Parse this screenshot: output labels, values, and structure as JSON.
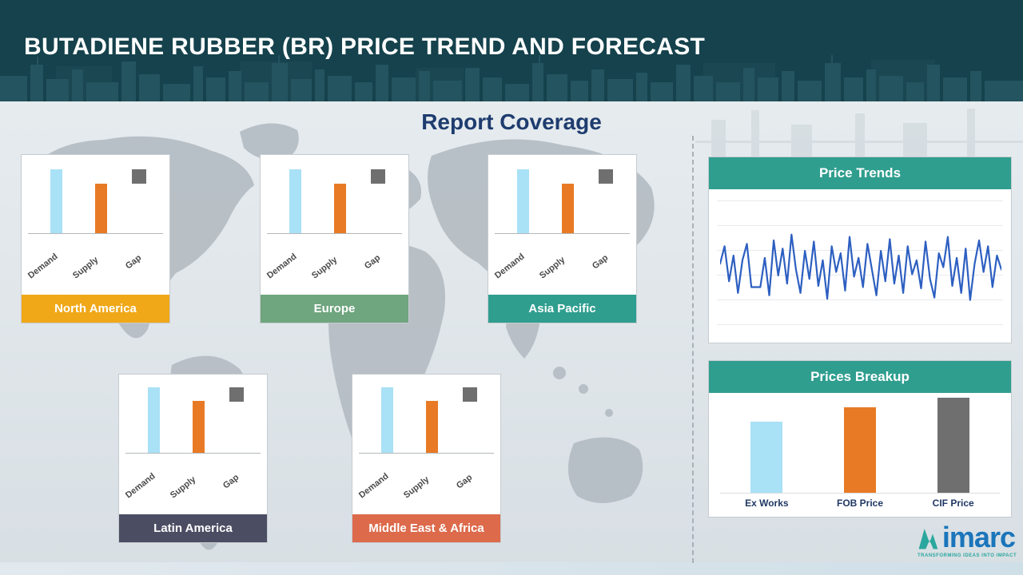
{
  "accent_color": "#2f9e8f",
  "header": {
    "title": "BUTADIENE RUBBER (BR) PRICE TREND AND FORECAST",
    "bg_color": "#15424c"
  },
  "main": {
    "title": "Report Coverage"
  },
  "mini_chart_labels": [
    "Demand",
    "Supply",
    "Gap"
  ],
  "mini_chart_colors": {
    "demand": "#a9e1f6",
    "supply": "#e87a25",
    "gap": "#6f6f6f"
  },
  "regions": [
    {
      "name": "North America",
      "label_color": "#f0a818",
      "demand": 80,
      "supply": 62,
      "gap": 18
    },
    {
      "name": "Europe",
      "label_color": "#6fa57f",
      "demand": 80,
      "supply": 62,
      "gap": 18
    },
    {
      "name": "Asia Pacific",
      "label_color": "#2f9e8f",
      "demand": 80,
      "supply": 62,
      "gap": 18
    },
    {
      "name": "Latin America",
      "label_color": "#4b4e63",
      "demand": 82,
      "supply": 65,
      "gap": 18
    },
    {
      "name": "Middle East & Africa",
      "label_color": "#dc6a4b",
      "demand": 82,
      "supply": 65,
      "gap": 18
    }
  ],
  "price_trends": {
    "title": "Price Trends",
    "line_color": "#2d5fc1",
    "values": [
      55,
      70,
      40,
      62,
      30,
      58,
      72,
      35,
      35,
      35,
      60,
      28,
      75,
      45,
      68,
      38,
      80,
      50,
      30,
      66,
      42,
      74,
      36,
      58,
      25,
      70,
      48,
      64,
      32,
      78,
      44,
      60,
      35,
      72,
      50,
      28,
      66,
      40,
      76,
      38,
      62,
      30,
      70,
      46,
      58,
      34,
      74,
      42,
      26,
      64,
      52,
      78,
      36,
      60,
      30,
      68,
      24,
      55,
      75,
      48,
      70,
      35,
      62,
      50
    ]
  },
  "prices_breakup": {
    "title": "Prices Breakup",
    "bars": [
      {
        "label": "Ex Works",
        "color": "#a9e1f6",
        "value": 63
      },
      {
        "label": "FOB Price",
        "color": "#e87a25",
        "value": 75
      },
      {
        "label": "CIF Price",
        "color": "#6f6f6f",
        "value": 84
      }
    ]
  },
  "logo": {
    "name": "imarc",
    "tagline": "TRANSFORMING IDEAS INTO IMPACT",
    "text_color": "#1b75bb",
    "mark_color": "#2aa79e"
  },
  "chart_data": [
    {
      "type": "bar",
      "title": "North America demand-supply-gap",
      "categories": [
        "Demand",
        "Supply",
        "Gap"
      ],
      "values": [
        80,
        62,
        18
      ],
      "units": "relative height (axis unlabeled)"
    },
    {
      "type": "bar",
      "title": "Europe demand-supply-gap",
      "categories": [
        "Demand",
        "Supply",
        "Gap"
      ],
      "values": [
        80,
        62,
        18
      ],
      "units": "relative height (axis unlabeled)"
    },
    {
      "type": "bar",
      "title": "Asia Pacific demand-supply-gap",
      "categories": [
        "Demand",
        "Supply",
        "Gap"
      ],
      "values": [
        80,
        62,
        18
      ],
      "units": "relative height (axis unlabeled)"
    },
    {
      "type": "bar",
      "title": "Latin America demand-supply-gap",
      "categories": [
        "Demand",
        "Supply",
        "Gap"
      ],
      "values": [
        82,
        65,
        18
      ],
      "units": "relative height (axis unlabeled)"
    },
    {
      "type": "bar",
      "title": "Middle East & Africa demand-supply-gap",
      "categories": [
        "Demand",
        "Supply",
        "Gap"
      ],
      "values": [
        82,
        65,
        18
      ],
      "units": "relative height (axis unlabeled)"
    },
    {
      "type": "line",
      "title": "Price Trends",
      "x_axis": "time (unlabeled)",
      "y_axis": "price (unlabeled)",
      "ylim": [
        0,
        100
      ],
      "grid": "horizontal",
      "legend_position": "none",
      "values": [
        55,
        70,
        40,
        62,
        30,
        58,
        72,
        35,
        35,
        35,
        60,
        28,
        75,
        45,
        68,
        38,
        80,
        50,
        30,
        66,
        42,
        74,
        36,
        58,
        25,
        70,
        48,
        64,
        32,
        78,
        44,
        60,
        35,
        72,
        50,
        28,
        66,
        40,
        76,
        38,
        62,
        30,
        70,
        46,
        58,
        34,
        74,
        42,
        26,
        64,
        52,
        78,
        36,
        60,
        30,
        68,
        24,
        55,
        75,
        48,
        70,
        35,
        62,
        50
      ]
    },
    {
      "type": "bar",
      "title": "Prices Breakup",
      "categories": [
        "Ex Works",
        "FOB Price",
        "CIF Price"
      ],
      "values": [
        63,
        75,
        84
      ],
      "units": "relative height (axis unlabeled)"
    }
  ]
}
